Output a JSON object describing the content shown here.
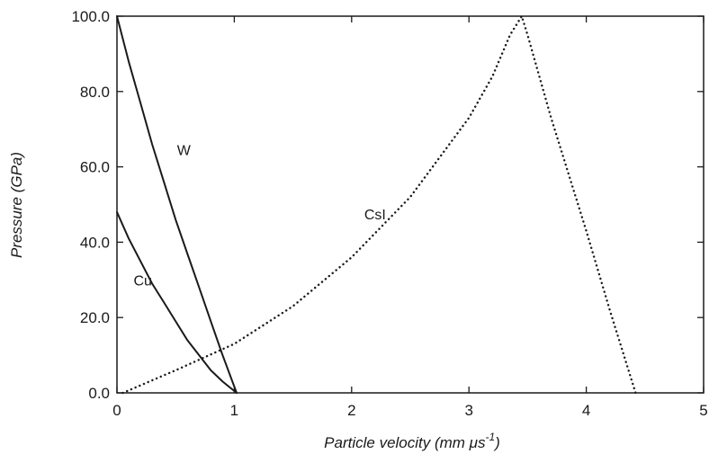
{
  "chart_data": {
    "type": "line",
    "title": "",
    "xlabel": "Particle velocity (mm μs",
    "xlabel_exponent": "-1",
    "xlabel_suffix": ")",
    "ylabel": "Pressure (GPa)",
    "xlim": [
      0,
      5
    ],
    "ylim": [
      0,
      100
    ],
    "x_ticks": [
      0,
      1,
      2,
      3,
      4,
      5
    ],
    "x_tick_labels": [
      "0",
      "1",
      "2",
      "3",
      "4",
      "5"
    ],
    "y_ticks": [
      0,
      20,
      40,
      60,
      80,
      100
    ],
    "y_tick_labels": [
      "0.0",
      "20.0",
      "40.0",
      "60.0",
      "80.0",
      "100.0"
    ],
    "grid": false,
    "legend": "none",
    "series": [
      {
        "name": "W",
        "style": "solid",
        "color": "#1a1a1a",
        "label_at": [
          0.57,
          64.5
        ],
        "x": [
          0,
          0.1,
          0.2,
          0.3,
          0.4,
          0.5,
          0.6,
          0.7,
          0.8,
          0.9,
          1.02
        ],
        "y": [
          100,
          88,
          77,
          66,
          56,
          46,
          37,
          28,
          19,
          10,
          0
        ]
      },
      {
        "name": "Cu",
        "style": "solid",
        "color": "#1a1a1a",
        "label_at": [
          0.22,
          30
        ],
        "x": [
          0,
          0.1,
          0.2,
          0.3,
          0.4,
          0.5,
          0.6,
          0.7,
          0.8,
          0.9,
          1.02
        ],
        "y": [
          48,
          41,
          35,
          29,
          24,
          19,
          14,
          10,
          6,
          3,
          0
        ]
      },
      {
        "name": "CsI",
        "style": "dotted",
        "color": "#1a1a1a",
        "label_at": [
          2.2,
          47.5
        ],
        "x": [
          0.05,
          0.5,
          1.0,
          1.5,
          2.0,
          2.5,
          3.0,
          3.2,
          3.35,
          3.45,
          3.5,
          3.7,
          4.0,
          4.2,
          4.42
        ],
        "y": [
          0,
          6,
          13,
          23,
          36,
          52,
          73,
          84,
          95,
          100,
          95,
          73,
          43,
          22,
          0
        ]
      }
    ]
  }
}
